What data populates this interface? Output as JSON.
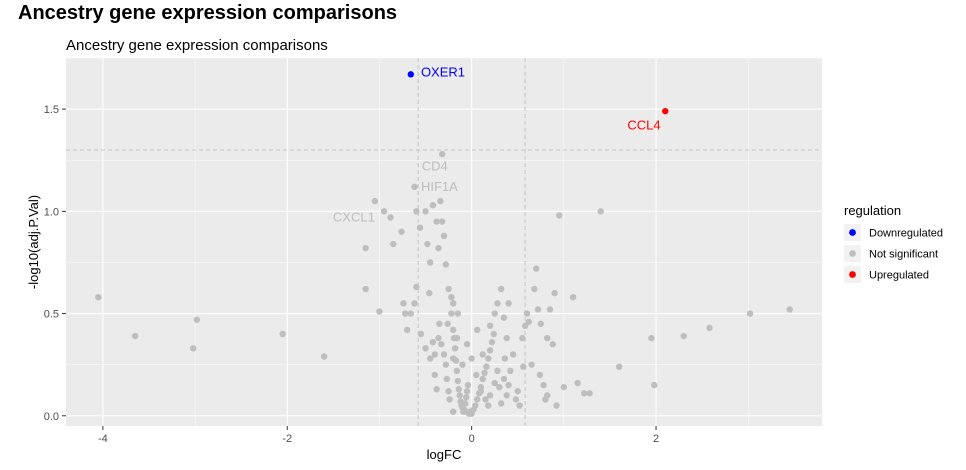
{
  "page": {
    "title": "Ancestry gene expression comparisons"
  },
  "chart_data": {
    "type": "scatter",
    "title": "Ancestry gene expression comparisons",
    "xlabel": "logFC",
    "ylabel": "-log10(adj.P.Val)",
    "xlim": [
      -4.4,
      3.8
    ],
    "ylim": [
      -0.05,
      1.75
    ],
    "x_ticks": [
      -4,
      -2,
      0,
      2
    ],
    "x_tick_labels": [
      "-4",
      "-2",
      "0",
      "2"
    ],
    "y_ticks": [
      0.0,
      0.5,
      1.0,
      1.5
    ],
    "y_tick_labels": [
      "0.0",
      "0.5",
      "1.0",
      "1.5"
    ],
    "grid": true,
    "vlines": [
      -0.58,
      0.58
    ],
    "hline": 1.3,
    "legend": {
      "title": "regulation",
      "position": "right",
      "entries": [
        {
          "name": "Downregulated",
          "color": "#0000ff"
        },
        {
          "name": "Not significant",
          "color": "#bebebe"
        },
        {
          "name": "Upregulated",
          "color": "#ff0000"
        }
      ]
    },
    "labels": [
      {
        "text": "OXER1",
        "x": -0.55,
        "y": 1.68,
        "anchor": "start",
        "color": "#0000ff"
      },
      {
        "text": "CCL4",
        "x": 2.05,
        "y": 1.42,
        "anchor": "end",
        "color": "#ff0000"
      },
      {
        "text": "CD4",
        "x": -0.4,
        "y": 1.22,
        "anchor": "middle",
        "color": "#bebebe"
      },
      {
        "text": "HIF1A",
        "x": -0.35,
        "y": 1.12,
        "anchor": "middle",
        "color": "#bebebe"
      },
      {
        "text": "CXCL1",
        "x": -1.05,
        "y": 0.97,
        "anchor": "end",
        "color": "#bebebe"
      }
    ],
    "series": [
      {
        "name": "Downregulated",
        "color": "#0000ff",
        "points": [
          [
            -0.66,
            1.67
          ]
        ]
      },
      {
        "name": "Upregulated",
        "color": "#ff0000",
        "points": [
          [
            2.1,
            1.49
          ]
        ]
      },
      {
        "name": "Not significant",
        "color": "#bebebe",
        "points": [
          [
            -4.05,
            0.58
          ],
          [
            -3.65,
            0.39
          ],
          [
            -2.98,
            0.47
          ],
          [
            -3.02,
            0.33
          ],
          [
            -2.05,
            0.4
          ],
          [
            -1.6,
            0.29
          ],
          [
            -1.15,
            0.82
          ],
          [
            -1.05,
            1.05
          ],
          [
            -1.15,
            0.62
          ],
          [
            -0.95,
            1.0
          ],
          [
            -0.85,
            0.84
          ],
          [
            -1.0,
            0.51
          ],
          [
            -0.88,
            0.97
          ],
          [
            -0.76,
            0.9
          ],
          [
            -0.74,
            0.55
          ],
          [
            -0.72,
            0.5
          ],
          [
            -0.7,
            0.42
          ],
          [
            -0.66,
            0.5
          ],
          [
            -0.62,
            0.55
          ],
          [
            -0.6,
            0.63
          ],
          [
            -0.56,
            0.92
          ],
          [
            -0.5,
            1.0
          ],
          [
            -0.48,
            0.84
          ],
          [
            -0.45,
            0.75
          ],
          [
            -0.42,
            1.03
          ],
          [
            -0.38,
            0.95
          ],
          [
            -0.36,
            0.82
          ],
          [
            -0.34,
            1.05
          ],
          [
            -0.32,
            0.95
          ],
          [
            -0.3,
            0.88
          ],
          [
            -0.28,
            0.74
          ],
          [
            -0.25,
            0.62
          ],
          [
            -0.22,
            0.58
          ],
          [
            -0.2,
            0.55
          ],
          [
            -0.32,
            1.28
          ],
          [
            -0.6,
            1.0
          ],
          [
            -0.62,
            1.12
          ],
          [
            -0.46,
            0.6
          ],
          [
            -0.55,
            0.4
          ],
          [
            -0.5,
            0.33
          ],
          [
            -0.45,
            0.28
          ],
          [
            -0.4,
            0.2
          ],
          [
            -0.38,
            0.13
          ],
          [
            -0.35,
            0.45
          ],
          [
            -0.33,
            0.35
          ],
          [
            -0.3,
            0.3
          ],
          [
            -0.28,
            0.25
          ],
          [
            -0.27,
            0.18
          ],
          [
            -0.25,
            0.12
          ],
          [
            -0.24,
            0.08
          ],
          [
            -0.22,
            0.5
          ],
          [
            -0.2,
            0.42
          ],
          [
            -0.19,
            0.38
          ],
          [
            -0.18,
            0.33
          ],
          [
            -0.17,
            0.27
          ],
          [
            -0.16,
            0.22
          ],
          [
            -0.15,
            0.17
          ],
          [
            -0.14,
            0.13
          ],
          [
            -0.13,
            0.1
          ],
          [
            -0.12,
            0.07
          ],
          [
            -0.11,
            0.05
          ],
          [
            -0.1,
            0.04
          ],
          [
            -0.09,
            0.02
          ],
          [
            -0.08,
            0.03
          ],
          [
            -0.07,
            0.06
          ],
          [
            -0.06,
            0.09
          ],
          [
            -0.05,
            0.12
          ],
          [
            -0.04,
            0.15
          ],
          [
            -0.03,
            0.01
          ],
          [
            -0.02,
            0.02
          ],
          [
            0.0,
            0.01
          ],
          [
            0.02,
            0.03
          ],
          [
            0.04,
            0.05
          ],
          [
            0.06,
            0.08
          ],
          [
            0.08,
            0.11
          ],
          [
            0.1,
            0.14
          ],
          [
            0.12,
            0.18
          ],
          [
            0.14,
            0.21
          ],
          [
            0.16,
            0.24
          ],
          [
            0.18,
            0.28
          ],
          [
            0.2,
            0.32
          ],
          [
            0.22,
            0.36
          ],
          [
            0.24,
            0.4
          ],
          [
            -0.42,
            0.36
          ],
          [
            -0.4,
            0.3
          ],
          [
            -0.36,
            0.38
          ],
          [
            -0.2,
            0.28
          ],
          [
            -0.16,
            0.38
          ],
          [
            0.05,
            0.2
          ],
          [
            0.1,
            0.12
          ],
          [
            0.15,
            0.08
          ],
          [
            0.2,
            0.1
          ],
          [
            0.25,
            0.16
          ],
          [
            0.28,
            0.22
          ],
          [
            0.3,
            0.14
          ],
          [
            0.32,
            0.06
          ],
          [
            0.35,
            0.18
          ],
          [
            0.36,
            0.28
          ],
          [
            0.38,
            0.1
          ],
          [
            0.4,
            0.15
          ],
          [
            0.42,
            0.22
          ],
          [
            0.45,
            0.3
          ],
          [
            0.48,
            0.08
          ],
          [
            0.5,
            0.12
          ],
          [
            0.52,
            0.05
          ],
          [
            0.55,
            0.38
          ],
          [
            0.56,
            0.24
          ],
          [
            0.58,
            0.44
          ],
          [
            0.6,
            0.5
          ],
          [
            0.62,
            0.46
          ],
          [
            0.28,
            0.55
          ],
          [
            0.32,
            0.62
          ],
          [
            0.25,
            0.5
          ],
          [
            0.4,
            0.55
          ],
          [
            0.35,
            0.48
          ],
          [
            0.2,
            0.44
          ],
          [
            0.65,
            0.25
          ],
          [
            0.68,
            0.62
          ],
          [
            0.7,
            0.72
          ],
          [
            0.72,
            0.52
          ],
          [
            0.75,
            0.45
          ],
          [
            0.78,
            0.15
          ],
          [
            0.8,
            0.08
          ],
          [
            0.82,
            0.1
          ],
          [
            0.85,
            0.52
          ],
          [
            0.9,
            0.6
          ],
          [
            0.95,
            0.98
          ],
          [
            1.0,
            0.14
          ],
          [
            1.1,
            0.58
          ],
          [
            1.15,
            0.16
          ],
          [
            1.22,
            0.11
          ],
          [
            1.28,
            0.11
          ],
          [
            1.4,
            1.0
          ],
          [
            0.82,
            0.38
          ],
          [
            0.88,
            0.35
          ],
          [
            0.74,
            0.2
          ],
          [
            0.92,
            0.05
          ],
          [
            1.6,
            0.24
          ],
          [
            1.95,
            0.38
          ],
          [
            1.98,
            0.15
          ],
          [
            2.3,
            0.39
          ],
          [
            2.58,
            0.43
          ],
          [
            3.02,
            0.5
          ],
          [
            3.45,
            0.52
          ],
          [
            -0.1,
            0.25
          ],
          [
            -0.05,
            0.35
          ],
          [
            0.0,
            0.28
          ],
          [
            -0.15,
            0.5
          ],
          [
            0.06,
            0.42
          ],
          [
            -0.26,
            0.45
          ],
          [
            0.12,
            0.3
          ],
          [
            0.18,
            0.05
          ],
          [
            -0.2,
            0.02
          ],
          [
            0.38,
            0.38
          ]
        ]
      }
    ]
  }
}
